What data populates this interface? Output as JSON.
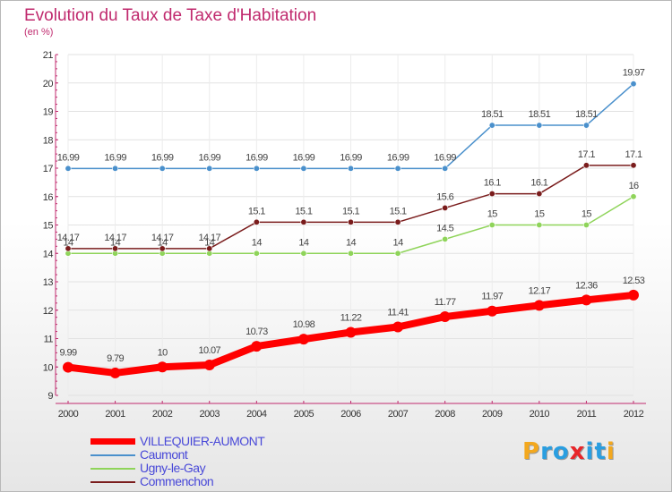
{
  "title": "Evolution du Taux de Taxe d'Habitation",
  "subtitle": "(en %)",
  "logo": {
    "text": "Proxiti",
    "colors": [
      "#f3a81e",
      "#2a9ee0",
      "#2a9ee0",
      "#e8262a",
      "#2a9ee0",
      "#2a9ee0",
      "#f3a81e"
    ]
  },
  "chart_data": {
    "type": "line",
    "title": "Evolution du Taux de Taxe d'Habitation",
    "ylabel": "(en %)",
    "xlabel": "",
    "x": [
      "2000",
      "2001",
      "2002",
      "2003",
      "2004",
      "2005",
      "2006",
      "2007",
      "2008",
      "2009",
      "2010",
      "2011",
      "2012"
    ],
    "ylim": [
      9,
      21
    ],
    "yticks": [
      9,
      10,
      11,
      12,
      13,
      14,
      15,
      16,
      17,
      18,
      19,
      20,
      21
    ],
    "grid": true,
    "legend_position": "bottom-left",
    "series": [
      {
        "name": "VILLEQUIER-AUMONT",
        "color": "#ff0000",
        "labels": [
          "9.99",
          "9.79",
          "10",
          "10.07",
          "10.73",
          "10.98",
          "11.22",
          "11.41",
          "11.77",
          "11.97",
          "12.17",
          "12.36",
          "12.53"
        ],
        "values": [
          9.99,
          9.79,
          10,
          10.07,
          10.73,
          10.98,
          11.22,
          11.41,
          11.77,
          11.97,
          12.17,
          12.36,
          12.53
        ]
      },
      {
        "name": "Caumont",
        "color": "#4a90cc",
        "labels": [
          "16.99",
          "16.99",
          "16.99",
          "16.99",
          "16.99",
          "16.99",
          "16.99",
          "16.99",
          "16.99",
          "18.51",
          "18.51",
          "18.51",
          "19.97"
        ],
        "values": [
          16.99,
          16.99,
          16.99,
          16.99,
          16.99,
          16.99,
          16.99,
          16.99,
          16.99,
          18.51,
          18.51,
          18.51,
          19.97
        ]
      },
      {
        "name": "Ugny-le-Gay",
        "color": "#8fd45a",
        "labels": [
          "14",
          "14",
          "14",
          "14",
          "14",
          "14",
          "14",
          "14",
          "14.5",
          "15",
          "15",
          "15",
          "16"
        ],
        "values": [
          14,
          14,
          14,
          14,
          14,
          14,
          14,
          14,
          14.5,
          15,
          15,
          15,
          16
        ]
      },
      {
        "name": "Commenchon",
        "color": "#7a1c1c",
        "labels": [
          "14.17",
          "14.17",
          "14.17",
          "14.17",
          "15.1",
          "15.1",
          "15.1",
          "15.1",
          "15.6",
          "16.1",
          "16.1",
          "17.1",
          "17.1"
        ],
        "values": [
          14.17,
          14.17,
          14.17,
          14.17,
          15.1,
          15.1,
          15.1,
          15.1,
          15.6,
          16.1,
          16.1,
          17.1,
          17.1
        ]
      }
    ]
  }
}
